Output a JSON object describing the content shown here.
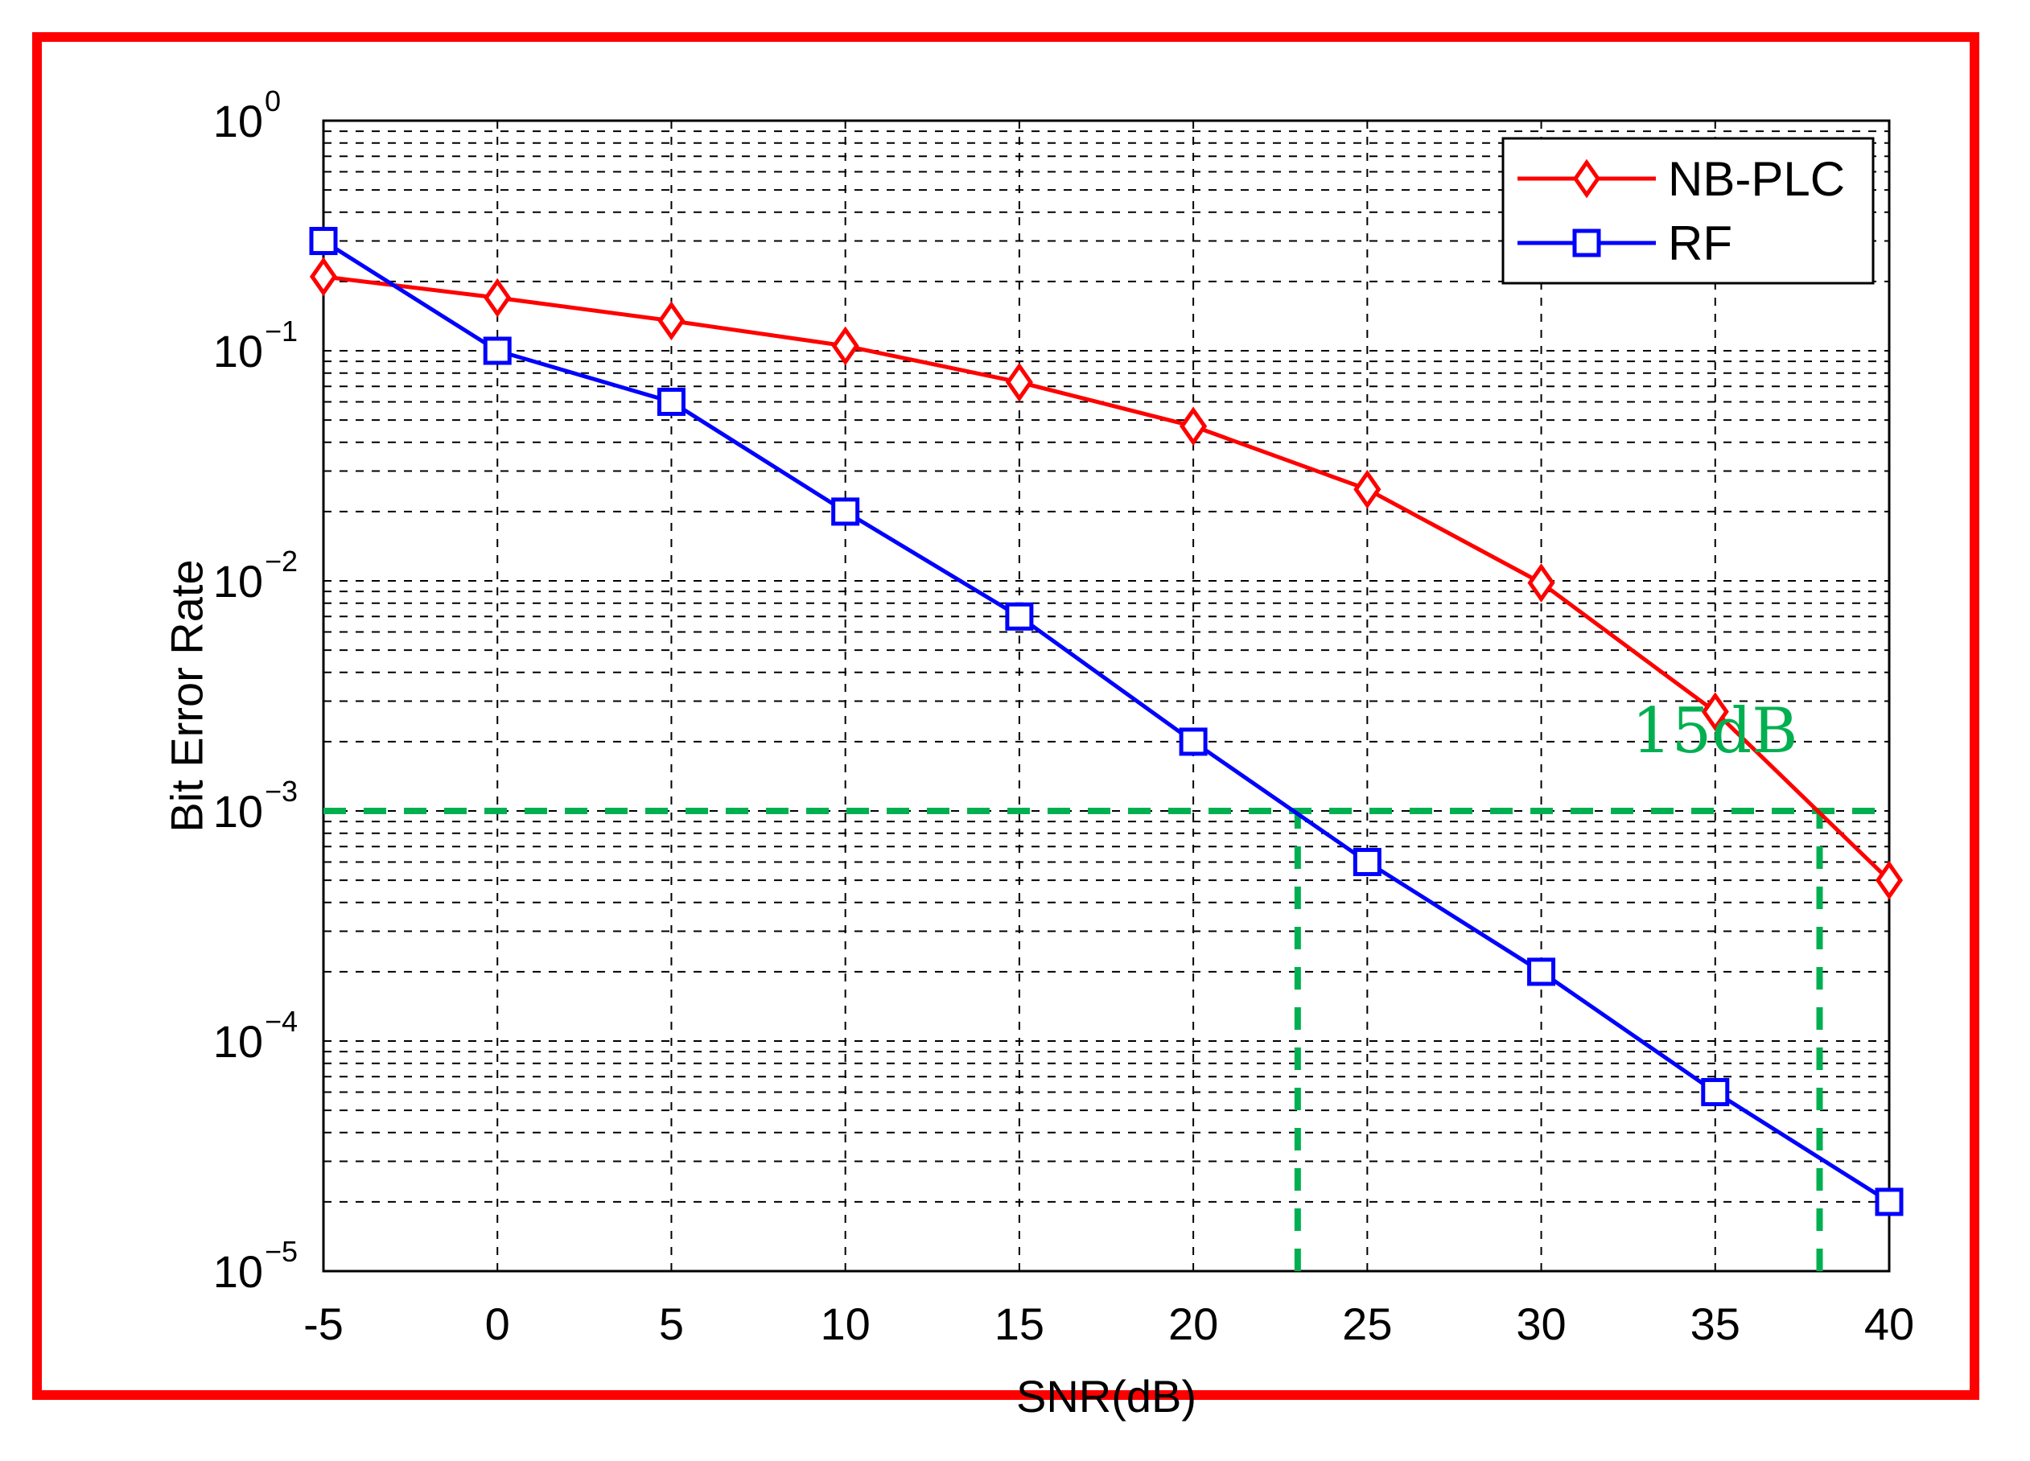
{
  "chart_data": {
    "type": "line",
    "xlabel": "SNR(dB)",
    "ylabel": "Bit Error Rate",
    "x_ticks": [
      "-5",
      "0",
      "5",
      "10",
      "15",
      "20",
      "25",
      "30",
      "35",
      "40"
    ],
    "xlim": [
      -5,
      40
    ],
    "ylim": [
      1e-05,
      1
    ],
    "y_scale": "log",
    "y_ticks": [
      {
        "base": "10",
        "exp": "0",
        "value": 1
      },
      {
        "base": "10",
        "exp": "−1",
        "value": 0.1
      },
      {
        "base": "10",
        "exp": "−2",
        "value": 0.01
      },
      {
        "base": "10",
        "exp": "−3",
        "value": 0.001
      },
      {
        "base": "10",
        "exp": "−4",
        "value": 0.0001
      },
      {
        "base": "10",
        "exp": "−5",
        "value": 1e-05
      }
    ],
    "grid": true,
    "legend_position": "top-right",
    "x": [
      -5,
      0,
      5,
      10,
      15,
      20,
      25,
      30,
      35,
      40
    ],
    "series": [
      {
        "name": "NB-PLC",
        "color": "#ff0000",
        "marker": "diamond",
        "values": [
          0.21,
          0.17,
          0.135,
          0.105,
          0.073,
          0.047,
          0.025,
          0.0098,
          0.0027,
          0.0005
        ]
      },
      {
        "name": "RF",
        "color": "#0000ff",
        "marker": "square",
        "values": [
          0.3,
          0.1,
          0.06,
          0.02,
          0.007,
          0.002,
          0.0006,
          0.0002,
          6e-05,
          2e-05
        ]
      }
    ],
    "annotations": [
      {
        "type": "hline",
        "y": 0.001,
        "x_from": -5,
        "x_to": 40,
        "color": "#00b050",
        "style": "dashed"
      },
      {
        "type": "vline",
        "x": 23,
        "y_from": 1e-05,
        "y_to": 0.001,
        "color": "#00b050",
        "style": "dashed"
      },
      {
        "type": "vline",
        "x": 38,
        "y_from": 1e-05,
        "y_to": 0.001,
        "color": "#00b050",
        "style": "dashed"
      },
      {
        "type": "text",
        "text": "15dB",
        "x": 32.6,
        "y": 0.0018,
        "color": "#00b050"
      }
    ]
  }
}
